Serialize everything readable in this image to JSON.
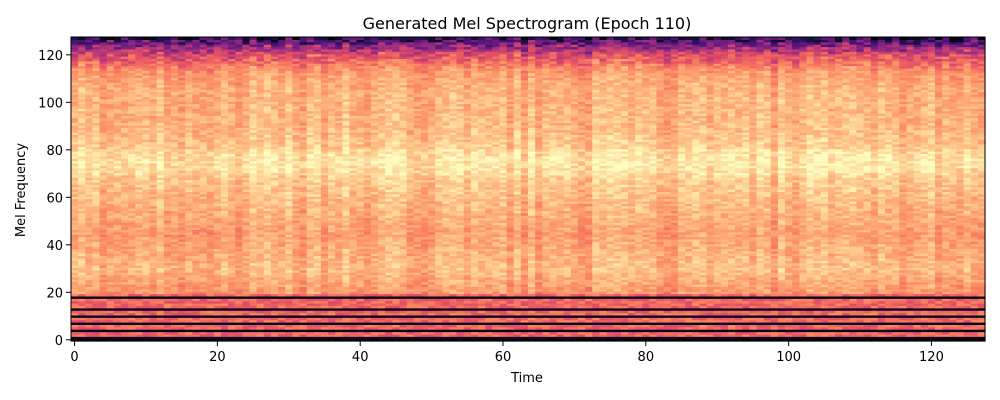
{
  "chart_data": {
    "type": "heatmap",
    "title": "Generated Mel Spectrogram (Epoch 110)",
    "xlabel": "Time",
    "ylabel": "Mel Frequency",
    "xlim": [
      -0.5,
      127.5
    ],
    "ylim": [
      -0.5,
      127.5
    ],
    "x_ticks": [
      0,
      20,
      40,
      60,
      80,
      100,
      120
    ],
    "y_ticks": [
      0,
      20,
      40,
      60,
      80,
      100,
      120
    ],
    "n_time_frames": 128,
    "n_mel_bins": 128,
    "colormap": "magma",
    "grid": false,
    "value_range": [
      0,
      1
    ],
    "mean_profile_by_mel_bin": [
      {
        "mel_bin": 0,
        "level": 0.02
      },
      {
        "mel_bin": 3,
        "level": 0.05
      },
      {
        "mel_bin": 6,
        "level": 0.08
      },
      {
        "mel_bin": 9,
        "level": 0.12
      },
      {
        "mel_bin": 13,
        "level": 0.14
      },
      {
        "mel_bin": 16,
        "level": 0.15
      },
      {
        "mel_bin": 18,
        "level": 0.12
      },
      {
        "mel_bin": 20,
        "level": 0.78
      },
      {
        "mel_bin": 30,
        "level": 0.86
      },
      {
        "mel_bin": 45,
        "level": 0.8
      },
      {
        "mel_bin": 60,
        "level": 0.86
      },
      {
        "mel_bin": 75,
        "level": 0.92
      },
      {
        "mel_bin": 90,
        "level": 0.85
      },
      {
        "mel_bin": 105,
        "level": 0.84
      },
      {
        "mel_bin": 115,
        "level": 0.78
      },
      {
        "mel_bin": 120,
        "level": 0.7
      },
      {
        "mel_bin": 124,
        "level": 0.55
      },
      {
        "mel_bin": 127,
        "level": 0.35
      }
    ],
    "dark_bands_mel_bins": [
      0,
      1,
      4,
      7,
      10,
      13,
      18
    ],
    "bright_band_mel_bins": [
      70,
      80
    ]
  }
}
